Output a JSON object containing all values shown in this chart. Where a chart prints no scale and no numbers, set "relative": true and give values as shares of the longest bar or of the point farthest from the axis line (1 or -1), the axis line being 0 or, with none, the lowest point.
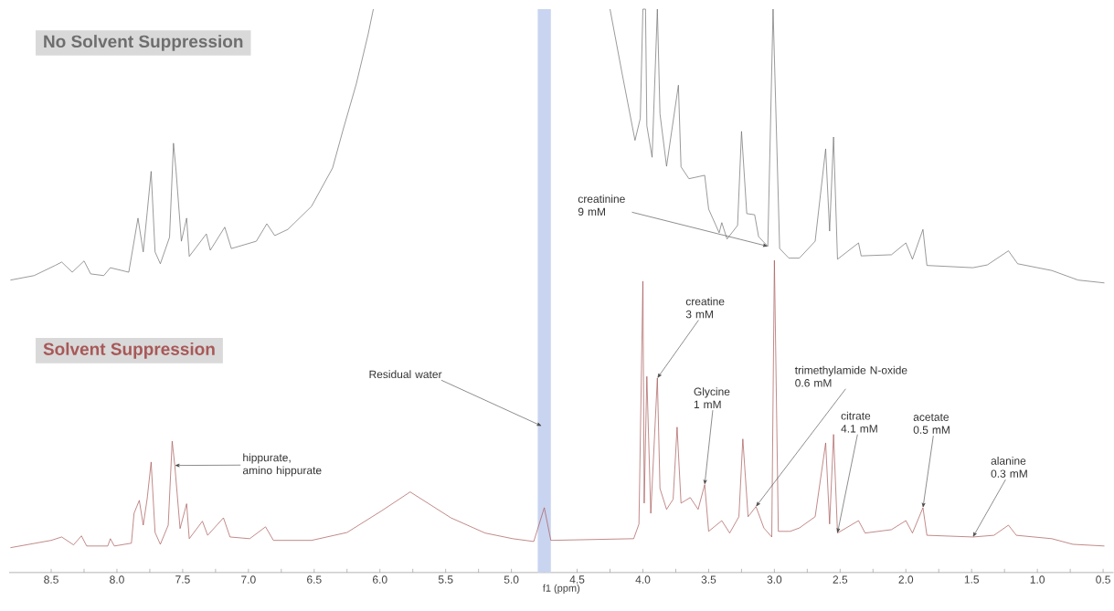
{
  "chart_data": {
    "type": "line",
    "relative": true,
    "xlabel": "f1 (ppm)",
    "xlim": [
      8.82,
      0.42
    ],
    "xticks": [
      {
        "value": 8.5,
        "label": "8.5"
      },
      {
        "value": 8.25,
        "label": null
      },
      {
        "value": 8.0,
        "label": "8.0"
      },
      {
        "value": 7.75,
        "label": null
      },
      {
        "value": 7.5,
        "label": "7.5"
      },
      {
        "value": 7.25,
        "label": null
      },
      {
        "value": 7.0,
        "label": "7.0"
      },
      {
        "value": 6.75,
        "label": null
      },
      {
        "value": 6.5,
        "label": "6.5"
      },
      {
        "value": 6.25,
        "label": null
      },
      {
        "value": 6.0,
        "label": "6.0"
      },
      {
        "value": 5.75,
        "label": null
      },
      {
        "value": 5.5,
        "label": "5.5"
      },
      {
        "value": 5.25,
        "label": null
      },
      {
        "value": 5.0,
        "label": "5.0"
      },
      {
        "value": 4.75,
        "label": null
      },
      {
        "value": 4.5,
        "label": "4.5"
      },
      {
        "value": 4.25,
        "label": null
      },
      {
        "value": 4.0,
        "label": "4.0"
      },
      {
        "value": 3.75,
        "label": null
      },
      {
        "value": 3.5,
        "label": "3.5"
      },
      {
        "value": 3.25,
        "label": null
      },
      {
        "value": 3.0,
        "label": "3.0"
      },
      {
        "value": 2.75,
        "label": null
      },
      {
        "value": 2.5,
        "label": "2.5"
      },
      {
        "value": 2.25,
        "label": null
      },
      {
        "value": 2.0,
        "label": "2.0"
      },
      {
        "value": 1.75,
        "label": null
      },
      {
        "value": 1.5,
        "label": "1.5"
      },
      {
        "value": 1.25,
        "label": null
      },
      {
        "value": 1.0,
        "label": "1.0"
      },
      {
        "value": 0.75,
        "label": null
      },
      {
        "value": 0.5,
        "label": "0.5"
      }
    ],
    "bands": [
      {
        "axis": "x",
        "from": 4.8,
        "to": 4.7,
        "color": "#c9d4f0"
      }
    ],
    "series": [
      {
        "name": "No Solvent Suppression",
        "color": "#6e6e6e",
        "x": [
          8.81,
          8.63,
          8.47,
          8.42,
          8.34,
          8.25,
          8.2,
          8.1,
          8.05,
          7.91,
          7.84,
          7.8,
          7.77,
          7.74,
          7.71,
          7.67,
          7.6,
          7.57,
          7.55,
          7.51,
          7.47,
          7.45,
          7.32,
          7.29,
          7.18,
          7.13,
          6.94,
          6.86,
          6.8,
          6.7,
          6.52,
          6.36,
          6.28,
          6.18,
          6.09,
          6.05,
          5.2,
          4.25,
          4.16,
          4.06,
          4.02,
          4.0,
          3.98,
          3.97,
          3.93,
          3.89,
          3.87,
          3.82,
          3.73,
          3.71,
          3.65,
          3.53,
          3.5,
          3.42,
          3.4,
          3.36,
          3.28,
          3.25,
          3.21,
          3.15,
          3.12,
          3.05,
          3.01,
          2.96,
          2.89,
          2.81,
          2.69,
          2.61,
          2.58,
          2.55,
          2.52,
          2.36,
          2.34,
          2.11,
          2.0,
          1.95,
          1.87,
          1.84,
          1.49,
          1.38,
          1.22,
          1.15,
          0.89,
          0.69,
          0.49
        ],
        "values": [
          0.519,
          0.527,
          0.545,
          0.551,
          0.533,
          0.553,
          0.53,
          0.527,
          0.541,
          0.533,
          0.629,
          0.569,
          0.639,
          0.712,
          0.569,
          0.548,
          0.595,
          0.762,
          0.712,
          0.588,
          0.629,
          0.561,
          0.601,
          0.572,
          0.613,
          0.575,
          0.588,
          0.619,
          0.598,
          0.609,
          0.65,
          0.718,
          0.786,
          0.867,
          0.955,
          1,
          null,
          1,
          0.888,
          0.767,
          0.806,
          1,
          1,
          0.793,
          0.737,
          1,
          0.814,
          0.721,
          0.865,
          0.72,
          0.699,
          0.705,
          0.645,
          0.603,
          0.621,
          0.592,
          0.616,
          0.783,
          0.637,
          0.635,
          0.596,
          0.579,
          1,
          0.575,
          0.558,
          0.558,
          0.588,
          0.752,
          0.606,
          0.773,
          0.556,
          0.585,
          0.562,
          0.564,
          0.585,
          0.556,
          0.609,
          0.545,
          0.541,
          0.546,
          0.571,
          0.548,
          0.536,
          0.519,
          0.514
        ]
      },
      {
        "name": "Solvent Suppression",
        "color": "#a85858",
        "x": [
          8.81,
          8.5,
          8.42,
          8.33,
          8.27,
          8.23,
          8.07,
          8.05,
          8.02,
          7.89,
          7.87,
          7.83,
          7.8,
          7.77,
          7.74,
          7.71,
          7.67,
          7.61,
          7.58,
          7.56,
          7.52,
          7.47,
          7.45,
          7.35,
          7.31,
          7.19,
          7.14,
          6.99,
          6.87,
          6.81,
          6.52,
          6.25,
          5.99,
          5.77,
          5.46,
          5.2,
          4.99,
          4.83,
          4.75,
          4.7,
          4.07,
          4.03,
          4.0,
          3.99,
          3.97,
          3.94,
          3.89,
          3.87,
          3.82,
          3.77,
          3.74,
          3.71,
          3.64,
          3.58,
          3.53,
          3.5,
          3.4,
          3.34,
          3.27,
          3.24,
          3.2,
          3.14,
          3.08,
          3.02,
          3.0,
          2.97,
          2.88,
          2.81,
          2.69,
          2.61,
          2.58,
          2.55,
          2.52,
          2.36,
          2.31,
          2.11,
          2.0,
          1.95,
          1.87,
          1.84,
          1.49,
          1.33,
          1.22,
          1.16,
          0.89,
          0.73,
          0.49
        ],
        "values": [
          0.044,
          0.057,
          0.063,
          0.049,
          0.065,
          0.047,
          0.047,
          0.06,
          0.047,
          0.052,
          0.105,
          0.128,
          0.084,
          0.131,
          0.196,
          0.071,
          0.05,
          0.084,
          0.233,
          0.19,
          0.078,
          0.122,
          0.06,
          0.091,
          0.066,
          0.097,
          0.063,
          0.06,
          0.081,
          0.057,
          0.057,
          0.071,
          0.109,
          0.143,
          0.097,
          0.07,
          0.06,
          0.055,
          0.115,
          0.057,
          0.06,
          0.086,
          0.517,
          0.123,
          0.348,
          0.105,
          0.345,
          0.149,
          0.112,
          0.13,
          0.258,
          0.123,
          0.133,
          0.112,
          0.156,
          0.073,
          0.092,
          0.07,
          0.099,
          0.237,
          0.099,
          0.117,
          0.079,
          0.063,
          0.554,
          0.073,
          0.073,
          0.079,
          0.099,
          0.23,
          0.086,
          0.245,
          0.07,
          0.092,
          0.07,
          0.076,
          0.092,
          0.07,
          0.115,
          0.066,
          0.063,
          0.066,
          0.084,
          0.066,
          0.06,
          0.05,
          0.047
        ]
      }
    ],
    "annotations": [
      {
        "text": "Residual water",
        "x": 4.77,
        "y": 0.26
      },
      {
        "text": "creatinine 9 mM",
        "x": 3.05,
        "y": 0.579
      },
      {
        "text": "creatine 3 mM",
        "x": 3.89,
        "y": 0.345
      },
      {
        "text": "Glycine 1 mM",
        "x": 3.53,
        "y": 0.156
      },
      {
        "text": "trimethylamide N-oxide 0.6 mM",
        "x": 3.14,
        "y": 0.117
      },
      {
        "text": "citrate 4.1 mM",
        "x": 2.52,
        "y": 0.07
      },
      {
        "text": "acetate 0.5 mM",
        "x": 1.87,
        "y": 0.115
      },
      {
        "text": "alanine 0.3 mM",
        "x": 1.49,
        "y": 0.063
      },
      {
        "text": "hippurate, amino hippurate",
        "x": 7.56,
        "y": 0.19
      }
    ]
  }
}
